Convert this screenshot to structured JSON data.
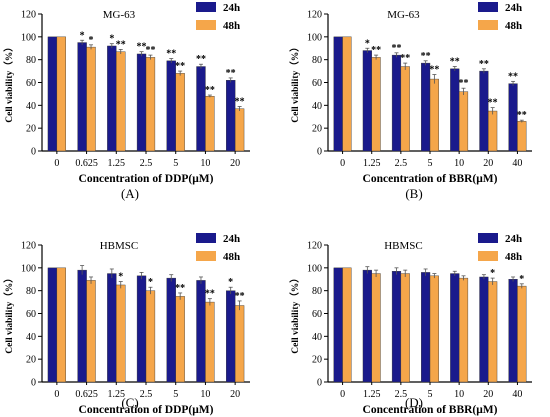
{
  "colors": {
    "h24": "#1a1a8c",
    "h48": "#f5a64a",
    "axis": "#000000",
    "error": "#555555"
  },
  "chart_data": [
    {
      "type": "bar",
      "panel_label": "(A)",
      "title": "MG-63",
      "xlabel": "Concentration of DDP(μM)",
      "ylabel": "Cell viability（%）",
      "ylim": [
        0,
        120
      ],
      "yticks": [
        0,
        20,
        40,
        60,
        80,
        100,
        120
      ],
      "legend_position": "top-right",
      "categories": [
        "0",
        "0.625",
        "1.25",
        "2.5",
        "5",
        "10",
        "20"
      ],
      "series": [
        {
          "name": "24h",
          "values": [
            100,
            95,
            92,
            85,
            79,
            74,
            62
          ],
          "errors": [
            0,
            2,
            2,
            2,
            2,
            2,
            2
          ],
          "marks": [
            "",
            "*",
            "*",
            "**",
            "**",
            "**",
            "**"
          ]
        },
        {
          "name": "48h",
          "values": [
            100,
            91,
            87,
            82,
            68,
            48,
            37
          ],
          "errors": [
            0,
            2,
            2,
            2,
            2,
            1,
            2
          ],
          "marks": [
            "",
            "*",
            "**",
            "**",
            "**",
            "**",
            "**"
          ]
        }
      ]
    },
    {
      "type": "bar",
      "panel_label": "(B)",
      "title": "MG-63",
      "xlabel": "Concentration of BBR(μM)",
      "ylabel": "Cell viability（%）",
      "ylim": [
        0,
        120
      ],
      "yticks": [
        0,
        20,
        40,
        60,
        80,
        100,
        120
      ],
      "legend_position": "top-right",
      "categories": [
        "0",
        "1.25",
        "2.5",
        "5",
        "10",
        "20",
        "40"
      ],
      "series": [
        {
          "name": "24h",
          "values": [
            100,
            88,
            84,
            77,
            72,
            70,
            59
          ],
          "errors": [
            0,
            2,
            2,
            2,
            2,
            2,
            2
          ],
          "marks": [
            "",
            "*",
            "**",
            "**",
            "**",
            "**",
            "**"
          ]
        },
        {
          "name": "48h",
          "values": [
            100,
            82,
            74,
            63,
            52,
            35,
            26
          ],
          "errors": [
            0,
            2,
            3,
            4,
            3,
            3,
            1
          ],
          "marks": [
            "",
            "**",
            "**",
            "**",
            "**",
            "**",
            "**"
          ]
        }
      ]
    },
    {
      "type": "bar",
      "panel_label": "(C)",
      "title": "HBMSC",
      "xlabel": "Concentration of DDP(μM)",
      "ylabel": "Cell viability（%）",
      "ylim": [
        0,
        120
      ],
      "yticks": [
        0,
        20,
        40,
        60,
        80,
        100,
        120
      ],
      "legend_position": "top-right",
      "categories": [
        "0",
        "0.625",
        "1.25",
        "2.5",
        "5",
        "10",
        "20"
      ],
      "series": [
        {
          "name": "24h",
          "values": [
            100,
            98,
            95,
            93,
            91,
            89,
            80
          ],
          "errors": [
            0,
            4,
            4,
            3,
            3,
            3,
            3
          ],
          "marks": [
            "",
            "",
            "",
            "",
            "",
            "",
            "*"
          ]
        },
        {
          "name": "48h",
          "values": [
            100,
            89,
            85,
            80,
            75,
            70,
            67
          ],
          "errors": [
            0,
            3,
            3,
            3,
            3,
            3,
            4
          ],
          "marks": [
            "",
            "",
            "*",
            "*",
            "**",
            "**",
            "**"
          ]
        }
      ]
    },
    {
      "type": "bar",
      "panel_label": "(D)",
      "title": "HBMSC",
      "xlabel": "Concentration of BBR(μM)",
      "ylabel": "Cell viability（%）",
      "ylim": [
        0,
        120
      ],
      "yticks": [
        0,
        20,
        40,
        60,
        80,
        100,
        120
      ],
      "legend_position": "top-right",
      "categories": [
        "0",
        "1.25",
        "2.5",
        "5",
        "10",
        "20",
        "40"
      ],
      "series": [
        {
          "name": "24h",
          "values": [
            100,
            98,
            97,
            96,
            95,
            92,
            90
          ],
          "errors": [
            0,
            3,
            3,
            3,
            2,
            2,
            2
          ],
          "marks": [
            "",
            "",
            "",
            "",
            "",
            "",
            ""
          ]
        },
        {
          "name": "48h",
          "values": [
            100,
            95,
            95,
            93,
            91,
            88,
            84
          ],
          "errors": [
            0,
            3,
            3,
            2,
            2,
            3,
            2
          ],
          "marks": [
            "",
            "",
            "",
            "",
            "",
            "*",
            "*"
          ]
        }
      ]
    }
  ]
}
